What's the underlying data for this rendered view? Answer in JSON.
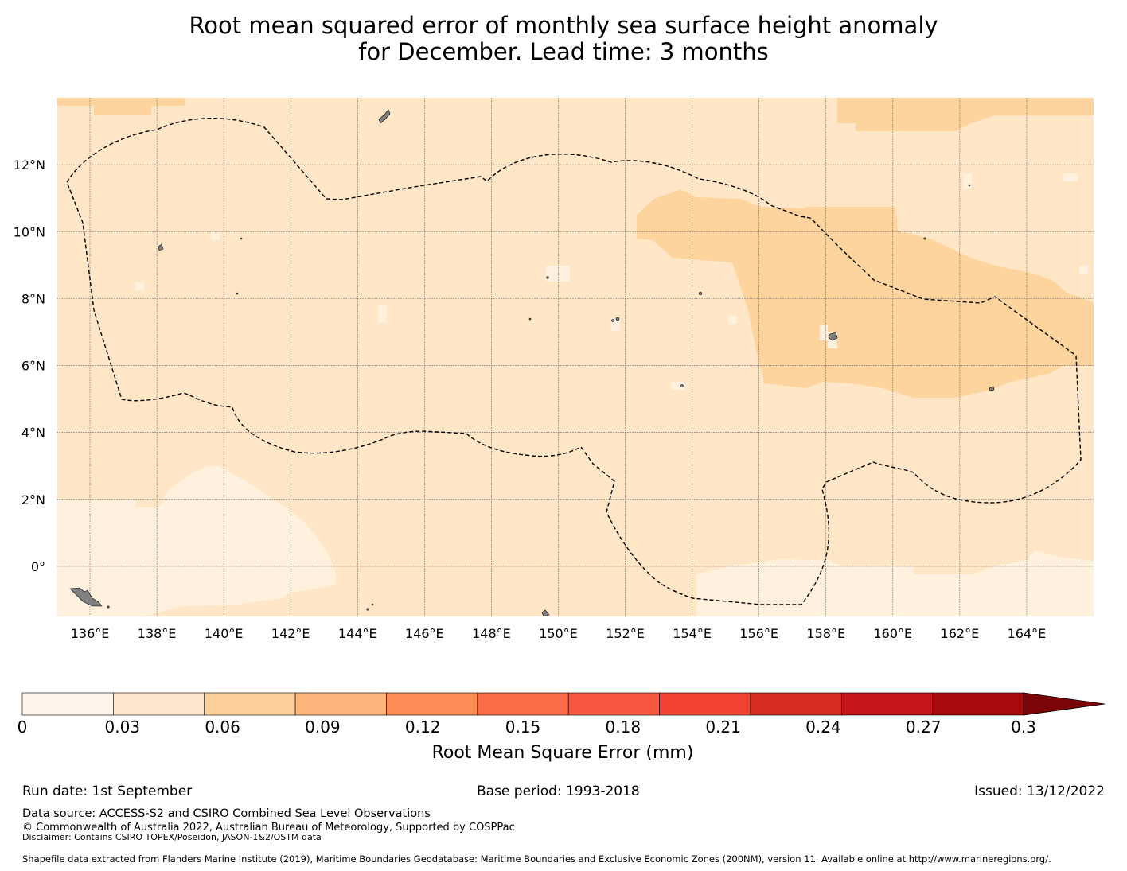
{
  "title": {
    "line1": "Root mean squared error of monthly sea surface height anomaly",
    "line2": "for December. Lead time: 3 months"
  },
  "map": {
    "lon_range": [
      135,
      166
    ],
    "lat_range": [
      -1.5,
      14
    ],
    "lon_ticks": [
      "136°E",
      "138°E",
      "140°E",
      "142°E",
      "144°E",
      "146°E",
      "148°E",
      "150°E",
      "152°E",
      "154°E",
      "156°E",
      "158°E",
      "160°E",
      "162°E",
      "164°E"
    ],
    "lat_ticks": [
      "12°N",
      "10°N",
      "8°N",
      "6°N",
      "4°N",
      "2°N",
      "0°"
    ],
    "lon_tick_values": [
      136,
      138,
      140,
      142,
      144,
      146,
      148,
      150,
      152,
      154,
      156,
      158,
      160,
      162,
      164
    ],
    "lat_tick_values": [
      12,
      10,
      8,
      6,
      4,
      2,
      0
    ],
    "fill_colors": {
      "level_0_03": "#fff1dd",
      "level_0_06": "#fee6c6",
      "level_0_09": "#fdd49e"
    },
    "eez_boundary": "dashed",
    "land_color": "#808080"
  },
  "colorbar": {
    "tick_labels": [
      "0",
      "0.03",
      "0.06",
      "0.09",
      "0.12",
      "0.15",
      "0.18",
      "0.21",
      "0.24",
      "0.27",
      "0.3"
    ],
    "colors": [
      "#fff5eb",
      "#fee6ce",
      "#fdd09c",
      "#fdb57b",
      "#fd8d56",
      "#fc6c47",
      "#fb5740",
      "#f24330",
      "#d72c24",
      "#c6161b",
      "#a80b0f"
    ],
    "extend_color": "#7a0406",
    "label": "Root Mean Square Error (mm)"
  },
  "footer": {
    "run_date": "Run date: 1st September",
    "base_period": "Base period: 1993-2018",
    "issued": "Issued: 13/12/2022",
    "data_source": "Data source: ACCESS-S2 and CSIRO Combined Sea Level Observations",
    "copyright": "© Commonwealth of Australia 2022, Australian Bureau of Meteorology, Supported by COSPPac",
    "disclaimer": "Disclaimer: Contains CSIRO TOPEX/Poseidon, JASON-1&2/OSTM data",
    "shapefile": "Shapefile data extracted from Flanders Marine Institute (2019), Maritime Boundaries Geodatabase: Maritime Boundaries and Exclusive Economic Zones (200NM), version 11. Available online at http://www.marineregions.org/."
  }
}
